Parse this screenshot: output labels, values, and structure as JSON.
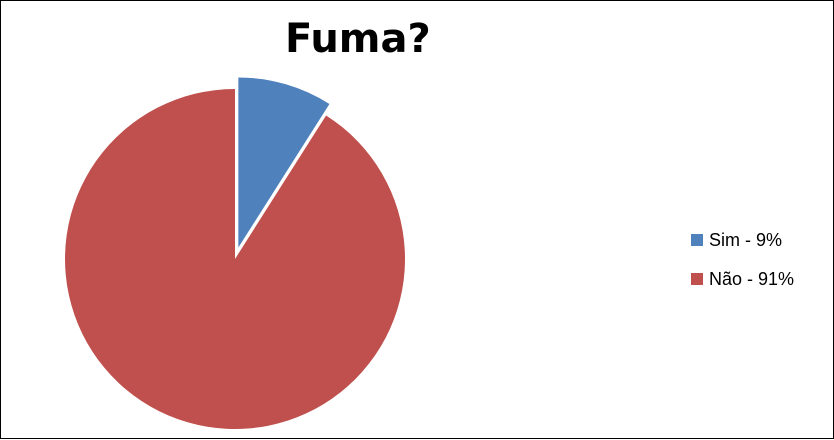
{
  "chart_data": {
    "type": "pie",
    "title": "Fuma?",
    "slices": [
      {
        "label": "Sim - 9%",
        "value": 9,
        "color": "#4f81bd"
      },
      {
        "label": "Não - 91%",
        "value": 91,
        "color": "#c0504d"
      }
    ],
    "exploded_slice": "Sim - 9%",
    "legend_position": "right"
  }
}
